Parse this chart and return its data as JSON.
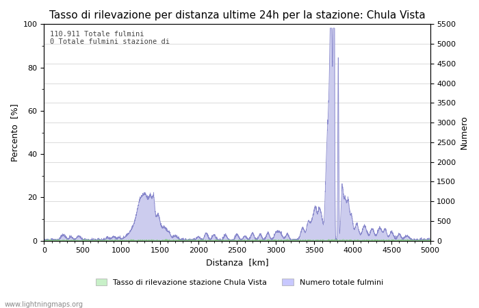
{
  "title": "Tasso di rilevazione per distanza ultime 24h per la stazione: Chula Vista",
  "xlabel": "Distanza  [km]",
  "ylabel_left": "Percento  [%]",
  "ylabel_right": "Numero",
  "annotation_lines": [
    "110.911 Totale fulmini",
    "0 Totale fulmini stazione di"
  ],
  "xlim": [
    0,
    5000
  ],
  "ylim_left": [
    0,
    100
  ],
  "ylim_right": [
    0,
    5500
  ],
  "xticks": [
    0,
    500,
    1000,
    1500,
    2000,
    2500,
    3000,
    3500,
    4000,
    4500,
    5000
  ],
  "yticks_left": [
    0,
    20,
    40,
    60,
    80,
    100
  ],
  "yticks_right": [
    0,
    500,
    1000,
    1500,
    2000,
    2500,
    3000,
    3500,
    4000,
    4500,
    5000,
    5500
  ],
  "legend_labels": [
    "Tasso di rilevazione stazione Chula Vista",
    "Numero totale fulmini"
  ],
  "legend_colors": [
    "#c8f0c8",
    "#c8c8ff"
  ],
  "footer_text": "www.lightningmaps.org",
  "bg_color": "#ffffff",
  "plot_bg_color": "#ffffff",
  "grid_color": "#cccccc",
  "line_color_blue": "#8888cc",
  "fill_color_green": "#d8f5d8",
  "fill_color_blue": "#ccccee",
  "title_fontsize": 11,
  "label_fontsize": 9,
  "tick_fontsize": 8
}
